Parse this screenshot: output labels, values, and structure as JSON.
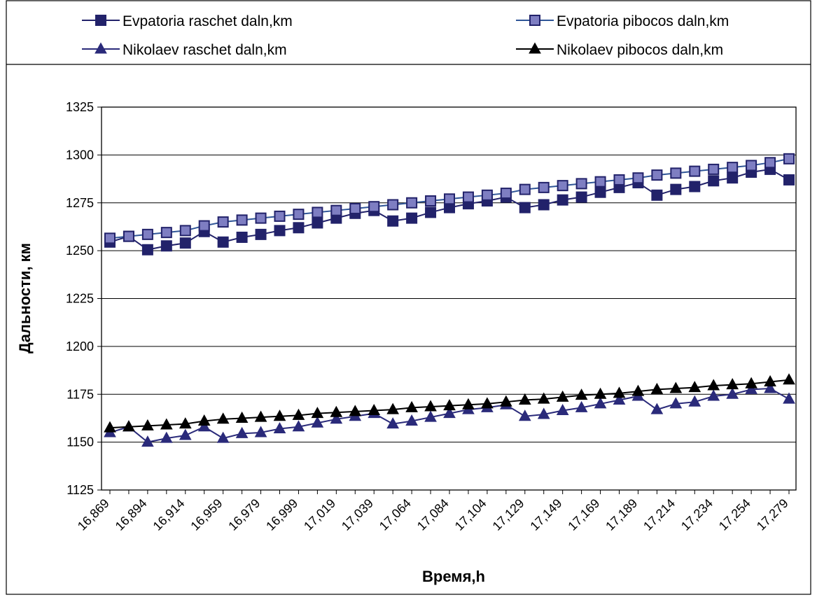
{
  "chart_data": {
    "type": "line",
    "xlabel": "Время,h",
    "ylabel": "Дальности, км",
    "ylim": [
      1125,
      1325
    ],
    "yticks": [
      1125,
      1150,
      1175,
      1200,
      1225,
      1250,
      1275,
      1300,
      1325
    ],
    "grid": "horizontal",
    "legend_position": "top",
    "x_tick_labels": [
      "16,869",
      "16,894",
      "16,914",
      "16,959",
      "16,979",
      "16,999",
      "17,019",
      "17,039",
      "17,064",
      "17,084",
      "17,104",
      "17,129",
      "17,149",
      "17,169",
      "17,189",
      "17,214",
      "17,234",
      "17,254",
      "17,279"
    ],
    "series": [
      {
        "name": "Evpatoria raschet daln,km",
        "color": "#22226a",
        "marker": "square",
        "values": [
          1254.5,
          1257.5,
          1250.5,
          1252.5,
          1254.0,
          1260.0,
          1254.5,
          1257.0,
          1258.5,
          1260.5,
          1262.0,
          1264.5,
          1267.0,
          1269.5,
          1271.0,
          1265.5,
          1267.0,
          1270.0,
          1272.5,
          1274.5,
          1276.0,
          1278.0,
          1272.5,
          1274.0,
          1276.5,
          1278.0,
          1280.5,
          1283.0,
          1285.5,
          1279.0,
          1282.0,
          1283.5,
          1286.5,
          1288.0,
          1291.0,
          1292.5,
          1287.0
        ]
      },
      {
        "name": "Evpatoria pibocos daln,km",
        "color": "#2f5597",
        "marker": "square-light",
        "values": [
          1256.5,
          1257.5,
          1258.5,
          1259.5,
          1260.5,
          1263.0,
          1265.0,
          1266.0,
          1267.0,
          1268.0,
          1269.0,
          1270.0,
          1271.0,
          1272.0,
          1273.0,
          1274.0,
          1275.0,
          1276.0,
          1277.0,
          1278.0,
          1279.0,
          1280.0,
          1282.0,
          1283.0,
          1284.0,
          1285.0,
          1286.0,
          1287.0,
          1288.0,
          1289.5,
          1290.5,
          1291.5,
          1292.5,
          1293.5,
          1294.5,
          1296.0,
          1298.0
        ]
      },
      {
        "name": "Nikolaev raschet daln,km",
        "color": "#2a2a7a",
        "marker": "triangle",
        "values": [
          1155.0,
          1158.0,
          1150.0,
          1152.0,
          1153.5,
          1158.0,
          1152.0,
          1154.5,
          1155.0,
          1157.0,
          1158.0,
          1160.0,
          1162.0,
          1163.5,
          1165.0,
          1159.5,
          1161.0,
          1163.0,
          1165.0,
          1167.0,
          1168.0,
          1169.5,
          1163.5,
          1164.5,
          1166.5,
          1168.0,
          1170.0,
          1172.0,
          1174.0,
          1167.0,
          1170.0,
          1171.0,
          1174.0,
          1175.0,
          1177.5,
          1178.0,
          1172.5
        ]
      },
      {
        "name": "Nikolaev pibocos daln,km",
        "color": "#000000",
        "marker": "triangle",
        "values": [
          1157.5,
          1158.0,
          1158.5,
          1159.0,
          1159.5,
          1161.0,
          1162.0,
          1162.5,
          1163.0,
          1163.5,
          1164.0,
          1165.0,
          1165.5,
          1166.0,
          1166.5,
          1167.0,
          1168.0,
          1168.5,
          1169.0,
          1169.5,
          1170.0,
          1171.0,
          1172.0,
          1172.5,
          1173.5,
          1174.5,
          1175.0,
          1175.5,
          1176.5,
          1177.5,
          1178.0,
          1178.5,
          1179.5,
          1180.0,
          1180.5,
          1181.5,
          1182.5
        ]
      }
    ]
  }
}
